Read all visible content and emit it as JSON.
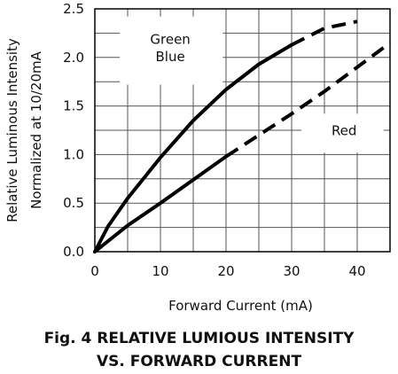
{
  "caption": {
    "line1": "Fig. 4 RELATIVE LUMIOUS INTENSITY",
    "line2": "VS. FORWARD CURRENT"
  },
  "chart_data": {
    "type": "line",
    "xlabel": "Forward Current (mA)",
    "ylabel": [
      "Relative Luminous Intensity",
      "Normalized at 10/20mA"
    ],
    "xlim": [
      0,
      45
    ],
    "ylim": [
      0,
      2.5
    ],
    "xticks": [
      0,
      10,
      20,
      30,
      40
    ],
    "yticks": [
      0.0,
      0.5,
      1.0,
      1.5,
      2.0,
      2.5
    ],
    "ytick_labels": [
      "0.0",
      "0.5",
      "1.0",
      "1.5",
      "2.0",
      "2.5"
    ],
    "grid": true,
    "annotations": [
      {
        "text": "Green",
        "x": 11.5,
        "y": 2.14
      },
      {
        "text": "Blue",
        "x": 11.5,
        "y": 1.96
      },
      {
        "text": "Red",
        "x": 38,
        "y": 1.2
      }
    ],
    "series": [
      {
        "label": "Green / Blue",
        "color": "#000000",
        "solid_until_x": 30,
        "points": [
          [
            0,
            0
          ],
          [
            2,
            0.26
          ],
          [
            5,
            0.55
          ],
          [
            10,
            0.97
          ],
          [
            15,
            1.35
          ],
          [
            20,
            1.67
          ],
          [
            25,
            1.93
          ],
          [
            30,
            2.13
          ],
          [
            35,
            2.3
          ],
          [
            40,
            2.37
          ]
        ]
      },
      {
        "label": "Red",
        "color": "#000000",
        "solid_until_x": 21,
        "points": [
          [
            0,
            0
          ],
          [
            5,
            0.27
          ],
          [
            10,
            0.5
          ],
          [
            15,
            0.74
          ],
          [
            20,
            0.98
          ],
          [
            25,
            1.2
          ],
          [
            30,
            1.42
          ],
          [
            35,
            1.65
          ],
          [
            40,
            1.9
          ],
          [
            45,
            2.15
          ]
        ]
      }
    ]
  }
}
